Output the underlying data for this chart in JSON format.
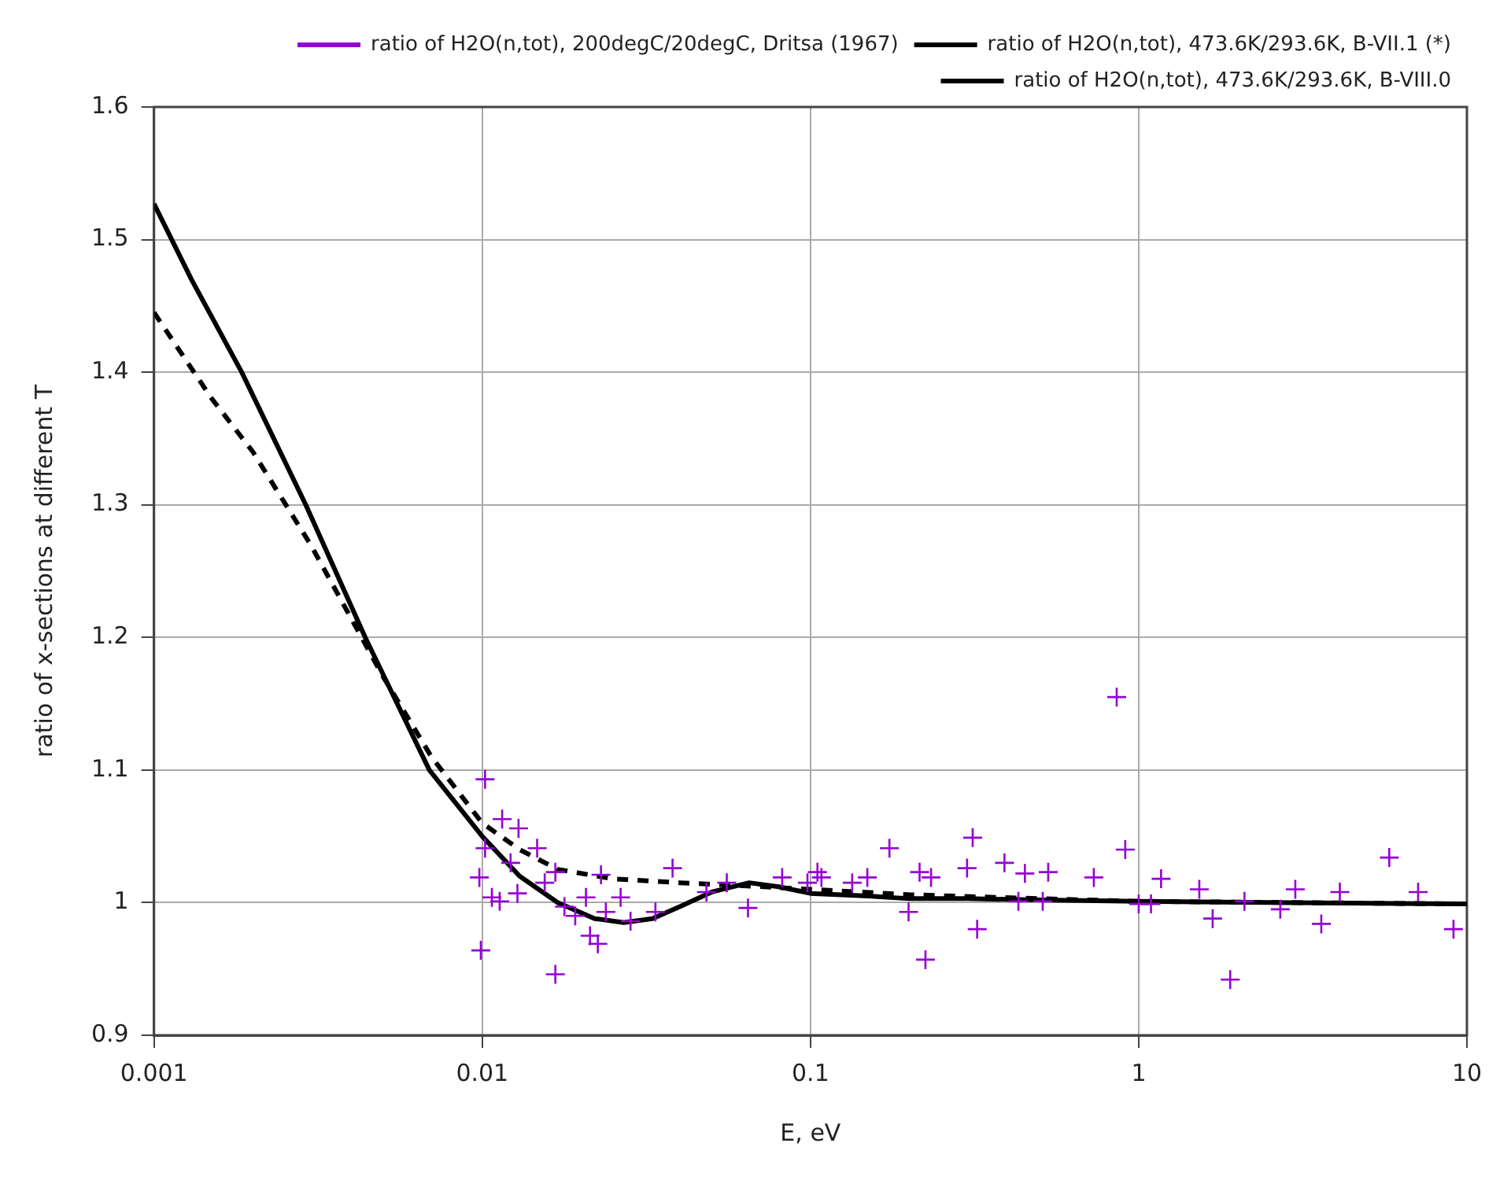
{
  "chart_data": {
    "type": "scatter",
    "xlabel": "E, eV",
    "ylabel": "ratio of x-sections at different T",
    "log": "x",
    "xlim": [
      0.001,
      10
    ],
    "xticks": [
      0.001,
      0.01,
      0.1,
      1,
      10
    ],
    "ylim": [
      0.9,
      1.6
    ],
    "yticks": [
      0.9,
      1.0,
      1.1,
      1.2,
      1.3,
      1.4,
      1.5,
      1.6
    ],
    "grid": true,
    "legend": "top right",
    "series": [
      {
        "name": "ratio of H2O(n,tot), 200degC/20degC, Dritsa (1967)",
        "type": "scatter",
        "marker": "cross",
        "color": "#9400d3",
        "x": [
          0.857,
          0.312,
          0.174,
          0.224,
          0.322,
          0.91,
          1.9,
          5.8,
          9.1,
          1.68,
          3.6,
          2.7,
          3.0,
          4.1,
          7.1,
          1.17,
          1.53,
          2.1,
          0.199,
          0.39,
          0.53,
          0.73,
          0.45,
          0.3,
          0.233,
          0.215,
          0.149,
          0.134,
          0.108,
          0.43,
          0.51,
          1.09,
          1.0,
          0.0102,
          0.0099,
          0.0167,
          0.0213,
          0.0225,
          0.0645,
          0.038,
          0.0115,
          0.0129,
          0.0098,
          0.0107,
          0.0113,
          0.0128,
          0.0147,
          0.0178,
          0.0238,
          0.0283,
          0.0337,
          0.023,
          0.0207,
          0.0155,
          0.0122,
          0.0102,
          0.0167,
          0.0482,
          0.0556,
          0.082,
          0.0979,
          0.105,
          0.0264,
          0.0192
        ],
        "values": [
          1.155,
          1.049,
          1.041,
          0.957,
          0.98,
          1.04,
          0.942,
          1.034,
          0.98,
          0.988,
          0.984,
          0.995,
          1.01,
          1.008,
          1.008,
          1.018,
          1.01,
          1.001,
          0.993,
          1.03,
          1.023,
          1.019,
          1.022,
          1.026,
          1.019,
          1.023,
          1.019,
          1.015,
          1.019,
          1.001,
          1.001,
          0.999,
          0.999,
          1.093,
          0.964,
          0.946,
          0.975,
          0.969,
          0.996,
          1.026,
          1.063,
          1.056,
          1.019,
          1.004,
          1.001,
          1.007,
          1.041,
          0.997,
          0.993,
          0.986,
          0.993,
          1.021,
          1.004,
          1.015,
          1.03,
          1.041,
          1.023,
          1.008,
          1.015,
          1.019,
          1.015,
          1.023,
          1.004,
          0.99
        ]
      },
      {
        "name": "ratio of H2O(n,tot), 473.6K/293.6K, B-VII.1 (*)",
        "type": "line",
        "marker": "none",
        "color": "#000000",
        "line_style": "dashed",
        "x": [
          0.001,
          0.0015,
          0.002,
          0.003,
          0.005,
          0.007,
          0.01,
          0.013,
          0.017,
          0.025,
          0.04,
          0.06,
          0.1,
          0.2,
          0.5,
          1,
          10
        ],
        "values": [
          1.445,
          1.38,
          1.34,
          1.27,
          1.17,
          1.11,
          1.06,
          1.04,
          1.025,
          1.018,
          1.015,
          1.013,
          1.01,
          1.006,
          1.003,
          1.001,
          0.999
        ]
      },
      {
        "name": "ratio of H2O(n,tot), 473.6K/293.6K, B-VIII.0",
        "type": "line",
        "marker": "none",
        "color": "#000000",
        "line_style": "solid",
        "x": [
          0.001,
          0.0013,
          0.00185,
          0.0029,
          0.0044,
          0.0069,
          0.01,
          0.013,
          0.017,
          0.022,
          0.027,
          0.033,
          0.04,
          0.05,
          0.065,
          0.08,
          0.1,
          0.15,
          0.2,
          0.3,
          0.5,
          1,
          3,
          10
        ],
        "values": [
          1.527,
          1.47,
          1.4,
          1.3,
          1.2,
          1.1,
          1.05,
          1.02,
          1.0,
          0.988,
          0.985,
          0.988,
          0.997,
          1.008,
          1.015,
          1.012,
          1.007,
          1.005,
          1.003,
          1.003,
          1.002,
          1.001,
          1.0,
          0.999
        ]
      }
    ]
  }
}
